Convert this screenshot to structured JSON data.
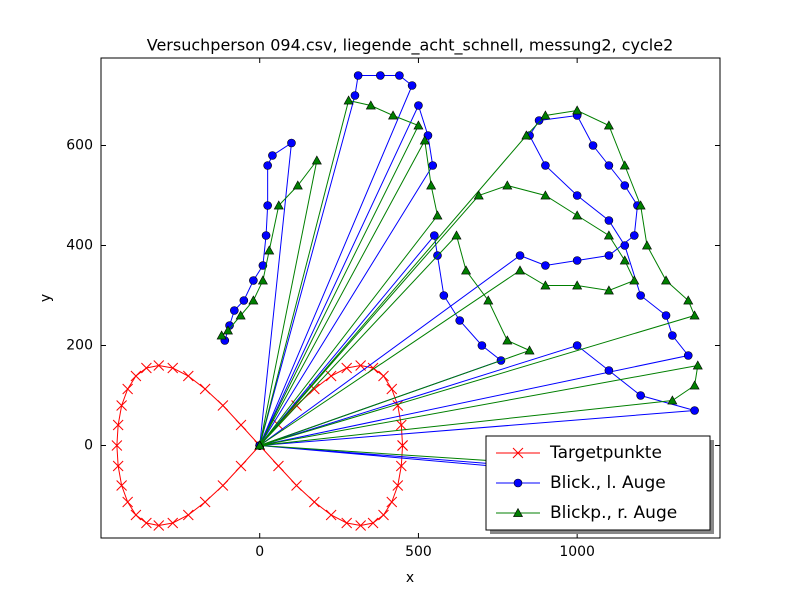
{
  "chart_data": {
    "type": "line",
    "title": "Versuchperson 094.csv, liegende_acht_schnell, messung2, cycle2",
    "x_label": "x",
    "y_label": "y",
    "xlim": [
      -500,
      1450
    ],
    "ylim": [
      -185,
      775
    ],
    "xticks": [
      0,
      500,
      1000
    ],
    "yticks": [
      0,
      200,
      400,
      600
    ],
    "legend": "lower right",
    "series": [
      {
        "name": "Targetpunkte",
        "color": "#ff0000",
        "marker": "x",
        "x": [
          450,
          446,
          435,
          416,
          390,
          357,
          318,
          274,
          225,
          172,
          116,
          59,
          0,
          -59,
          -116,
          -172,
          -225,
          -274,
          -318,
          -357,
          -390,
          -416,
          -435,
          -446,
          -450,
          -446,
          -435,
          -416,
          -390,
          -357,
          -318,
          -274,
          -225,
          -172,
          -116,
          -59,
          0,
          59,
          116,
          172,
          225,
          274,
          318,
          357,
          390,
          416,
          435,
          446,
          450
        ],
        "values": [
          0,
          41,
          80,
          113,
          139,
          155,
          160,
          155,
          139,
          113,
          80,
          41,
          0,
          -41,
          -80,
          -113,
          -139,
          -155,
          -160,
          -155,
          -139,
          -113,
          -80,
          -41,
          0,
          41,
          80,
          113,
          139,
          155,
          160,
          155,
          139,
          113,
          80,
          41,
          0,
          -41,
          -80,
          -113,
          -139,
          -155,
          -160,
          -155,
          -139,
          -113,
          -80,
          -41,
          0
        ]
      },
      {
        "name": "Blick., l. Auge",
        "color": "#0000ff",
        "marker": "o",
        "x": [
          -110,
          -95,
          -80,
          -50,
          -20,
          10,
          20,
          25,
          25,
          40,
          100,
          0,
          300,
          310,
          380,
          440,
          480,
          0,
          500,
          530,
          545,
          0,
          550,
          560,
          580,
          630,
          700,
          760,
          0,
          820,
          900,
          1000,
          1100,
          1180,
          1190,
          1150,
          1100,
          1050,
          1000,
          880,
          850,
          900,
          1000,
          1100,
          1150,
          1200,
          1280,
          1300,
          1350,
          0,
          1370,
          1200,
          1100,
          1000,
          0,
          1250,
          1000,
          0
        ],
        "values": [
          210,
          240,
          270,
          290,
          330,
          360,
          420,
          480,
          560,
          580,
          605,
          0,
          700,
          740,
          740,
          740,
          720,
          0,
          680,
          620,
          560,
          0,
          420,
          380,
          300,
          250,
          200,
          170,
          0,
          380,
          360,
          370,
          380,
          420,
          480,
          520,
          560,
          600,
          660,
          650,
          620,
          560,
          500,
          450,
          400,
          300,
          260,
          220,
          180,
          0,
          70,
          100,
          150,
          200,
          0,
          -70,
          -50,
          0
        ]
      },
      {
        "name": "Blickp., r. Auge",
        "color": "#007f00",
        "marker": "^",
        "x": [
          -120,
          -100,
          -60,
          -20,
          10,
          30,
          60,
          120,
          180,
          0,
          280,
          350,
          420,
          500,
          0,
          520,
          540,
          560,
          0,
          620,
          650,
          720,
          780,
          850,
          0,
          690,
          780,
          900,
          1000,
          1100,
          1150,
          1180,
          1100,
          1000,
          900,
          820,
          0,
          840,
          900,
          1000,
          1100,
          1150,
          1200,
          1220,
          1280,
          1350,
          1370,
          0,
          1380,
          1370,
          1300,
          0,
          1200,
          0
        ],
        "values": [
          220,
          230,
          260,
          290,
          330,
          390,
          480,
          520,
          570,
          0,
          690,
          680,
          660,
          640,
          0,
          610,
          520,
          460,
          0,
          420,
          350,
          290,
          210,
          190,
          0,
          500,
          520,
          500,
          460,
          420,
          370,
          330,
          310,
          320,
          320,
          350,
          0,
          620,
          660,
          670,
          640,
          560,
          480,
          400,
          330,
          290,
          260,
          0,
          160,
          120,
          90,
          0,
          -50,
          0
        ]
      }
    ]
  }
}
